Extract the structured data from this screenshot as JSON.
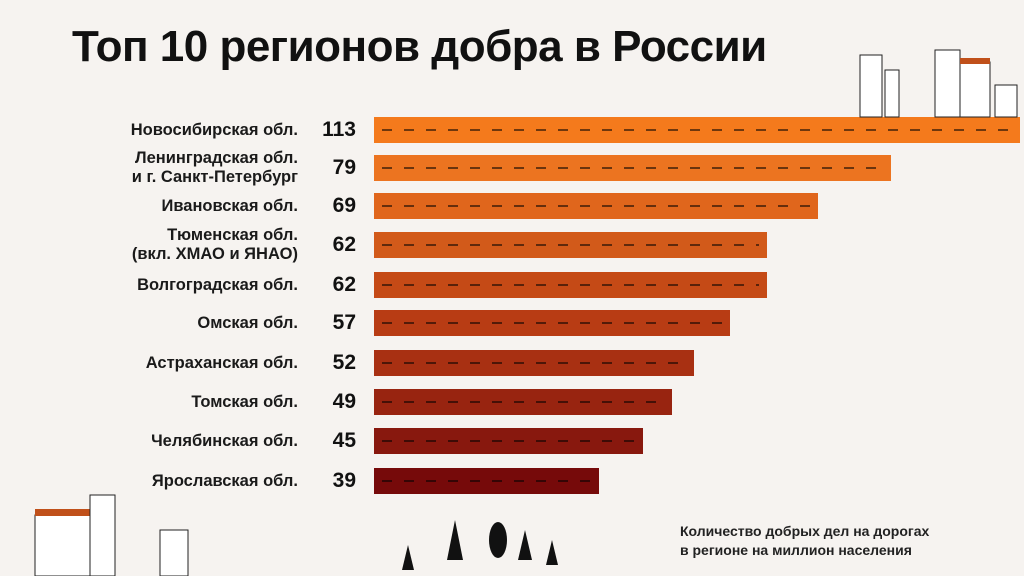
{
  "chart_data": {
    "type": "bar",
    "orientation": "horizontal",
    "title": "Топ 10 регионов добра в России",
    "categories": [
      [
        "Новосибирская обл."
      ],
      [
        "Ленинградская обл.",
        "и г. Санкт-Петербург"
      ],
      [
        "Ивановская обл."
      ],
      [
        "Тюменская обл.",
        "(вкл. ХМАО и ЯНАО)"
      ],
      [
        "Волгоградская обл."
      ],
      [
        "Омская обл."
      ],
      [
        "Астраханская обл."
      ],
      [
        "Томская обл."
      ],
      [
        "Челябинская обл."
      ],
      [
        "Ярославская обл."
      ]
    ],
    "values": [
      113,
      79,
      69,
      62,
      62,
      57,
      52,
      49,
      45,
      39
    ],
    "colors": [
      "#f47a1c",
      "#ec7420",
      "#e0661c",
      "#d25a1a",
      "#c54a16",
      "#b83c14",
      "#a83012",
      "#982410",
      "#88180e",
      "#760a0a"
    ],
    "note": [
      "Количество добрых дел на дорогах",
      "в регионе на миллион населения"
    ]
  }
}
